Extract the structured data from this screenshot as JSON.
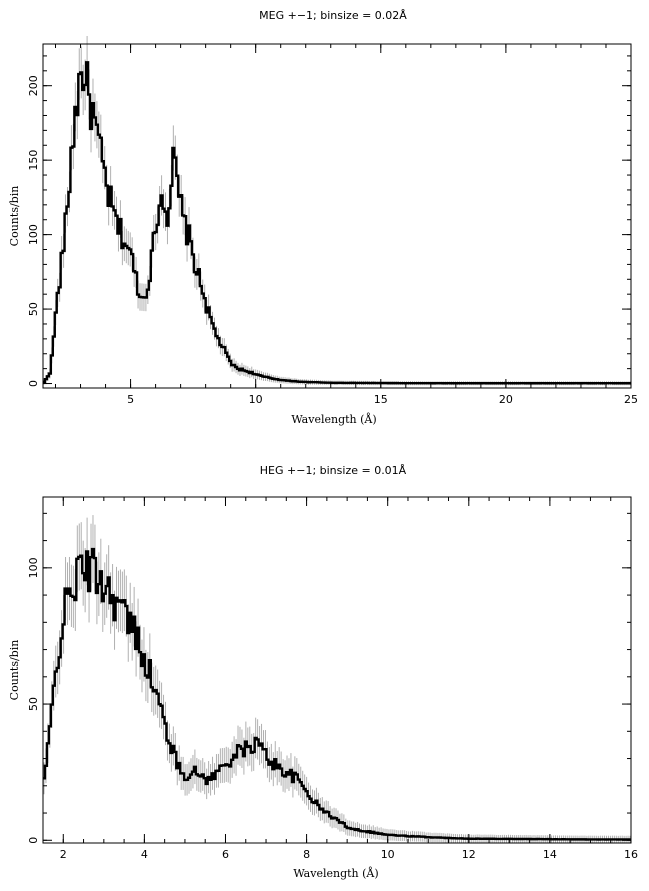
{
  "chart_data": [
    {
      "type": "line",
      "title": "MEG +−1; binsize = 0.02Å",
      "xlabel": "Wavelength (Å)",
      "ylabel": "Counts/bin",
      "xlim": [
        1.5,
        25
      ],
      "ylim": [
        -3,
        228
      ],
      "xticks": [
        5,
        10,
        15,
        20,
        25
      ],
      "xtick_labels": [
        "5",
        "10",
        "15",
        "20",
        "25"
      ],
      "yticks": [
        0,
        50,
        100,
        150,
        200
      ],
      "ytick_labels": [
        "0",
        "50",
        "100",
        "150",
        "200"
      ],
      "grid": false,
      "series": [
        {
          "x": [
            1.55,
            1.8,
            2.0,
            2.2,
            2.4,
            2.6,
            2.8,
            3.0,
            3.1,
            3.3,
            3.5,
            3.7,
            3.9,
            4.1,
            4.3,
            4.5,
            4.7,
            4.9,
            5.1,
            5.3,
            5.5,
            5.7,
            5.9,
            6.1,
            6.3,
            6.5,
            6.7,
            6.9,
            7.1,
            7.3,
            7.5,
            7.7,
            7.9,
            8.1,
            8.3,
            8.5,
            8.7,
            8.9,
            9.1,
            9.3,
            9.5,
            9.7,
            9.9,
            10.2,
            10.5,
            10.8,
            11.2,
            11.6,
            12.0,
            12.5,
            13.0,
            14.0,
            15.0,
            17.0,
            20.0,
            23.0,
            25.0
          ],
          "y": [
            1,
            8,
            45,
            75,
            105,
            145,
            185,
            205,
            212,
            195,
            180,
            162,
            145,
            128,
            115,
            105,
            98,
            92,
            80,
            65,
            55,
            68,
            90,
            118,
            128,
            112,
            150,
            130,
            110,
            100,
            86,
            72,
            62,
            48,
            38,
            30,
            24,
            17,
            12,
            10,
            9,
            8,
            7,
            5,
            4,
            3,
            2,
            1.5,
            1,
            0.8,
            0.5,
            0.4,
            0.3,
            0.2,
            0.2,
            0.2,
            0.2
          ],
          "error_fraction": 0.1
        }
      ]
    },
    {
      "type": "line",
      "title": "HEG +−1; binsize = 0.01Å",
      "xlabel": "Wavelength (Å)",
      "ylabel": "Counts/bin",
      "xlim": [
        1.5,
        16
      ],
      "ylim": [
        -1,
        126
      ],
      "xticks": [
        2,
        4,
        6,
        8,
        10,
        12,
        14,
        16
      ],
      "xtick_labels": [
        "2",
        "4",
        "6",
        "8",
        "10",
        "12",
        "14",
        "16"
      ],
      "yticks": [
        0,
        50,
        100
      ],
      "ytick_labels": [
        "0",
        "50",
        "100"
      ],
      "grid": false,
      "series": [
        {
          "x": [
            1.5,
            1.6,
            1.7,
            1.8,
            1.9,
            2.0,
            2.2,
            2.4,
            2.6,
            2.8,
            3.0,
            3.2,
            3.4,
            3.6,
            3.8,
            4.0,
            4.2,
            4.4,
            4.6,
            4.8,
            5.0,
            5.2,
            5.4,
            5.6,
            5.8,
            6.0,
            6.2,
            6.4,
            6.6,
            6.8,
            7.0,
            7.2,
            7.4,
            7.6,
            7.8,
            8.0,
            8.2,
            8.4,
            8.6,
            8.8,
            9.0,
            9.2,
            9.4,
            9.6,
            9.8,
            10.0,
            10.4,
            10.8,
            11.2,
            11.6,
            12.0,
            13.0,
            14.0,
            15.0,
            16.0
          ],
          "y": [
            20,
            30,
            45,
            60,
            72,
            82,
            92,
            98,
            100,
            98,
            95,
            90,
            86,
            80,
            75,
            68,
            58,
            48,
            38,
            28,
            24,
            25,
            24,
            22,
            25,
            28,
            31,
            33,
            34,
            36,
            31,
            28,
            26,
            24,
            22,
            18,
            14,
            11,
            9,
            7,
            5,
            4,
            3.5,
            3,
            2.5,
            2,
            1.6,
            1.3,
            1,
            0.8,
            0.6,
            0.5,
            0.4,
            0.3,
            0.3
          ],
          "error_fraction": 0.12
        }
      ]
    }
  ]
}
